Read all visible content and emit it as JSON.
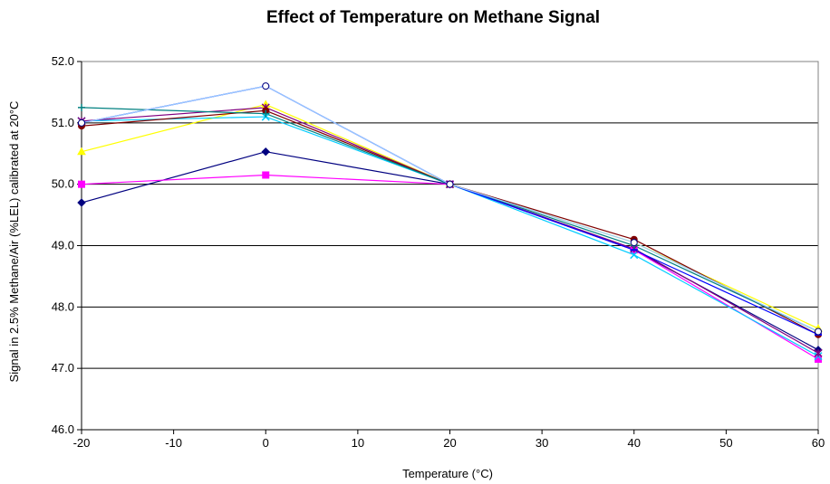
{
  "chart_data": {
    "type": "line",
    "title": "Effect of Temperature on Methane Signal",
    "xlabel": "Temperature (°C)",
    "ylabel": "Signal in 2.5% Methane/Air (%LEL) calibrated at 20°C",
    "xlim": [
      -20,
      60
    ],
    "ylim": [
      46.0,
      52.0
    ],
    "x_ticks": [
      "-20",
      "-10",
      "0",
      "10",
      "20",
      "30",
      "40",
      "50",
      "60"
    ],
    "y_ticks": [
      "46.0",
      "47.0",
      "48.0",
      "49.0",
      "50.0",
      "51.0",
      "52.0"
    ],
    "grid": "horizontal",
    "legend": "none",
    "x": [
      -20,
      0,
      20,
      40,
      60
    ],
    "series": [
      {
        "color": "#000080",
        "marker": "diamond",
        "values": [
          49.7,
          50.53,
          50.0,
          48.93,
          47.3
        ]
      },
      {
        "color": "#ff00ff",
        "marker": "square",
        "values": [
          50.0,
          50.15,
          50.0,
          48.93,
          47.15
        ]
      },
      {
        "color": "#ffff00",
        "marker": "triangle",
        "values": [
          50.53,
          51.3,
          50.0,
          49.05,
          47.65
        ]
      },
      {
        "color": "#00ccff",
        "marker": "x",
        "values": [
          51.03,
          51.1,
          50.0,
          48.85,
          47.2
        ]
      },
      {
        "color": "#800080",
        "marker": "star",
        "values": [
          51.03,
          51.25,
          50.0,
          48.95,
          47.25
        ]
      },
      {
        "color": "#800000",
        "marker": "circle",
        "values": [
          50.95,
          51.2,
          50.0,
          49.1,
          47.55
        ]
      },
      {
        "color": "#008080",
        "marker": "plus",
        "values": [
          51.25,
          51.15,
          50.0,
          49.0,
          47.6
        ]
      },
      {
        "color": "#0000ff",
        "marker": "dash",
        "values": [
          51.0,
          51.6,
          50.0,
          48.93,
          47.55
        ]
      },
      {
        "color": "#99ccff",
        "marker": "open-circle",
        "values": [
          51.0,
          51.6,
          50.0,
          49.05,
          47.6
        ]
      }
    ]
  }
}
